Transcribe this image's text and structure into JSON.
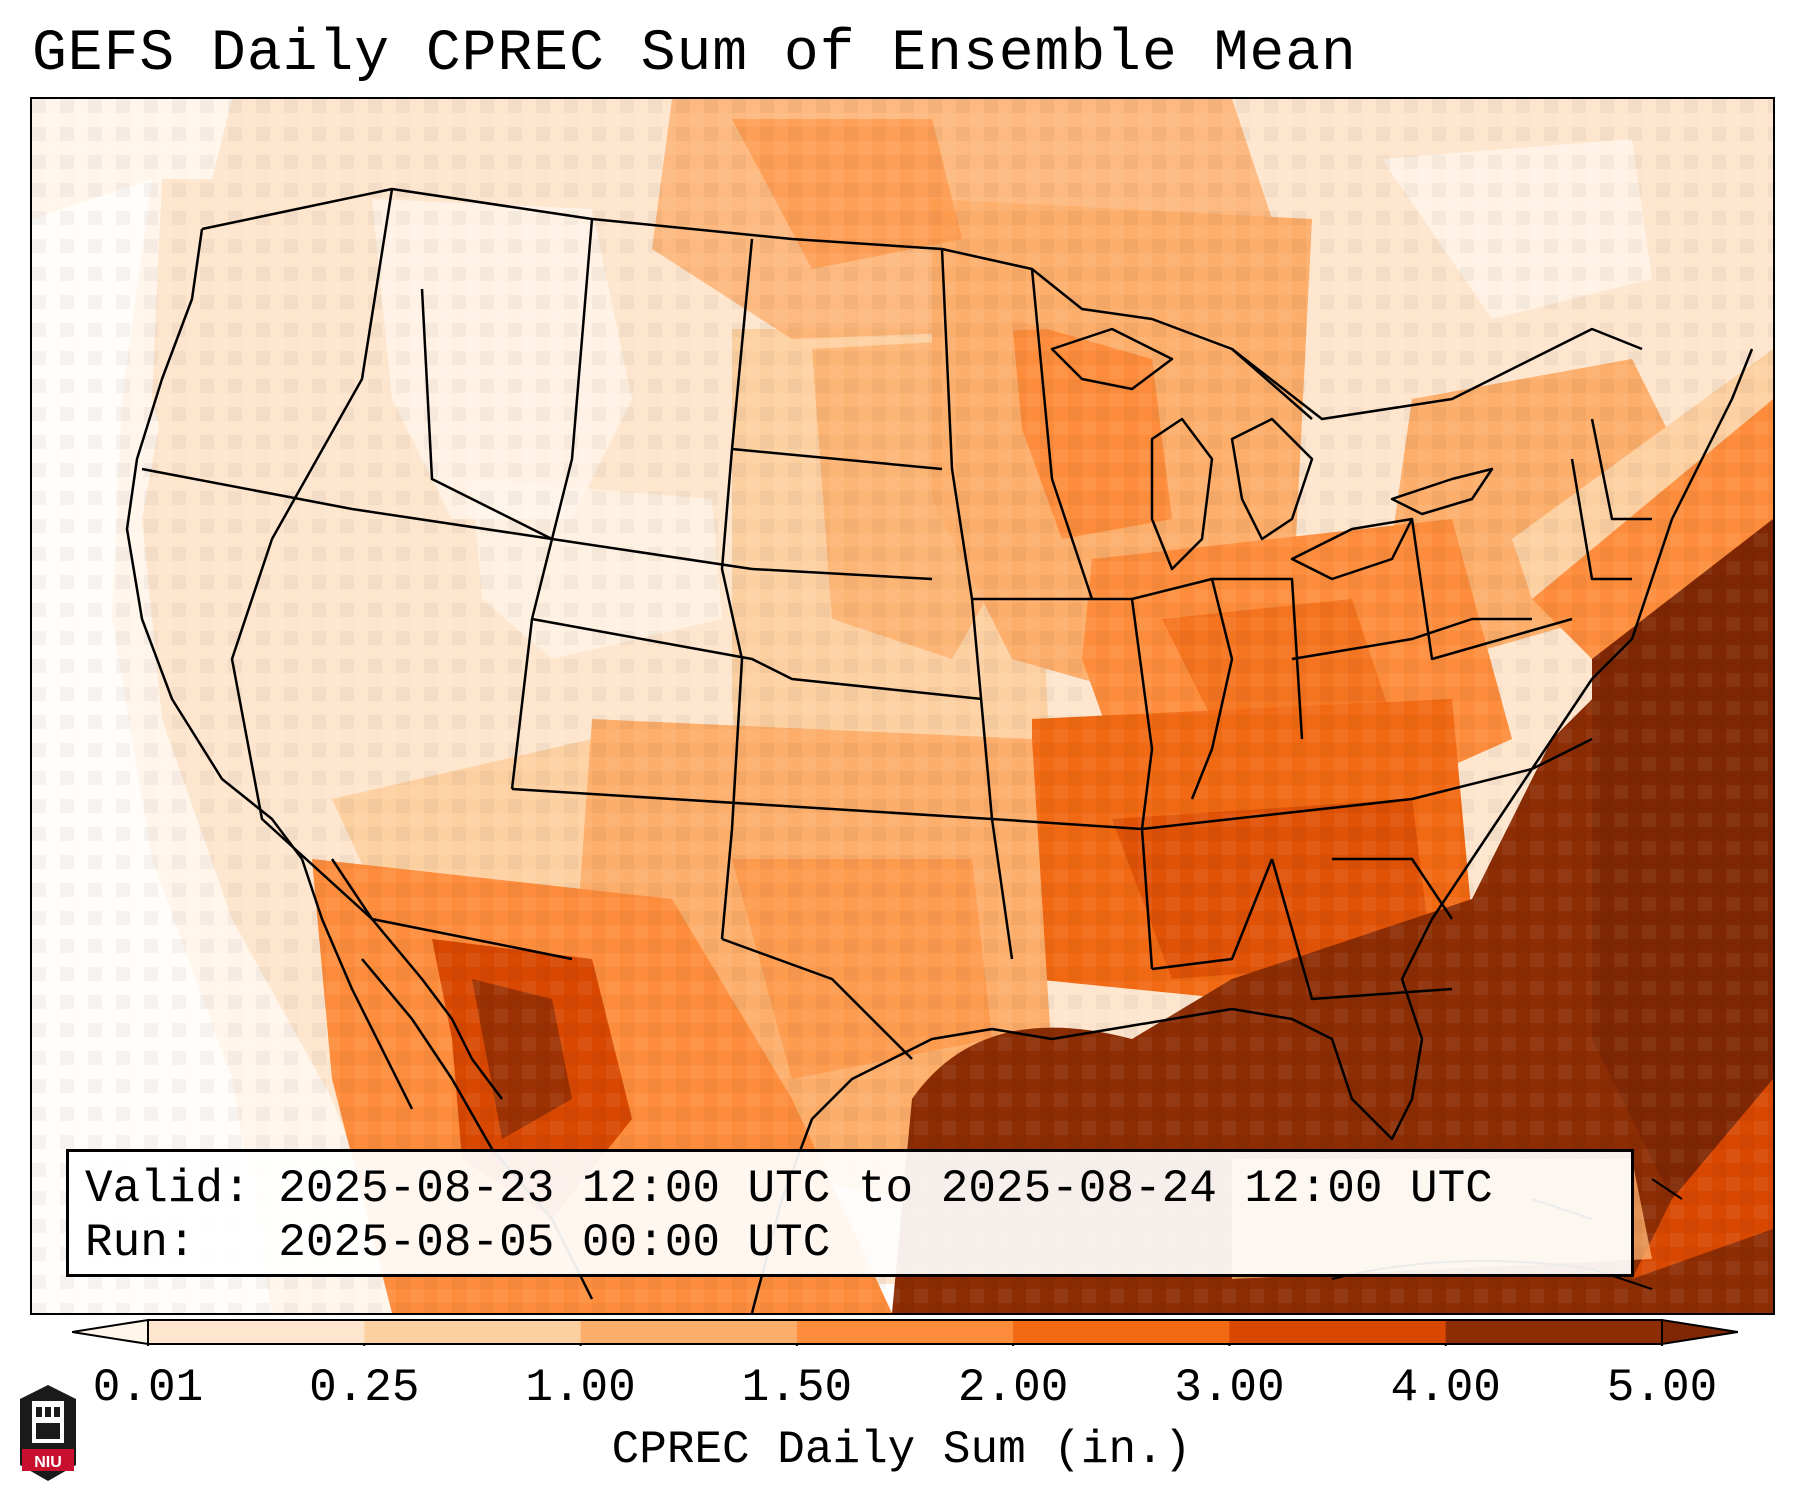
{
  "title": "GEFS Daily CPREC Sum of Ensemble Mean",
  "valid_label": "Valid:",
  "valid_value": "2025-08-23 12:00 UTC to 2025-08-24 12:00 UTC",
  "run_label": "Run:",
  "run_value": "2025-08-05 00:00 UTC",
  "colorbar": {
    "label": "CPREC Daily Sum (in.)",
    "ticks": [
      "0.01",
      "0.25",
      "1.00",
      "1.50",
      "2.00",
      "3.00",
      "4.00",
      "5.00"
    ],
    "colors": [
      "#fff5eb",
      "#fee6ce",
      "#fdd0a2",
      "#fdae6b",
      "#fd8d3c",
      "#f16913",
      "#d94801",
      "#8c2d04"
    ],
    "under_color": "#ffffff",
    "over_color": "#7f2704"
  },
  "logo": {
    "text": "NIU",
    "color": "#c8102e"
  }
}
